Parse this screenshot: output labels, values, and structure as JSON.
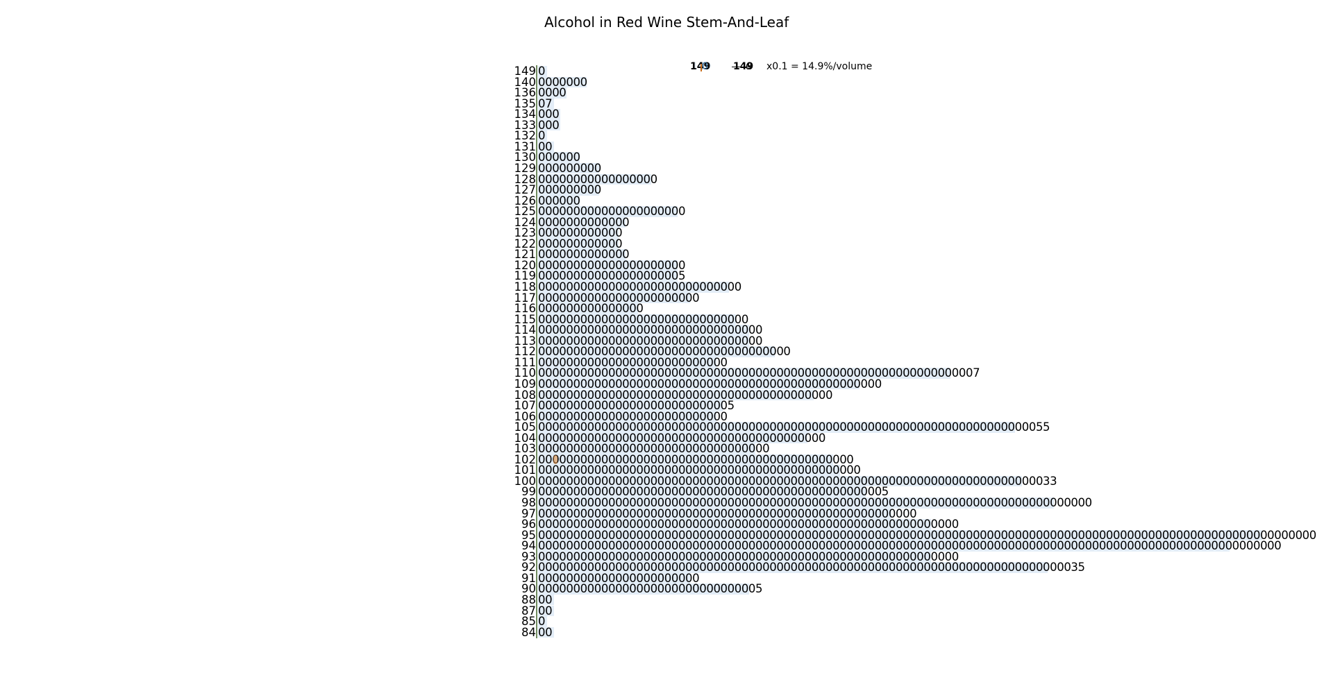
{
  "chart_data": {
    "type": "stem-and-leaf",
    "title": "Alcohol in Red Wine Stem-And-Leaf",
    "key": {
      "stem": "149",
      "leaf": "0",
      "stem_example": "149",
      "leaf_example": "0",
      "text": "x0.1 = 14.9%/volume"
    },
    "rows": [
      {
        "stem": "149",
        "leaves": "0"
      },
      {
        "stem": "140",
        "leaves": "0000000"
      },
      {
        "stem": "136",
        "leaves": "0000"
      },
      {
        "stem": "135",
        "leaves": "07"
      },
      {
        "stem": "134",
        "leaves": "000"
      },
      {
        "stem": "133",
        "leaves": "000"
      },
      {
        "stem": "132",
        "leaves": "0"
      },
      {
        "stem": "131",
        "leaves": "00"
      },
      {
        "stem": "130",
        "leaves": "000000"
      },
      {
        "stem": "129",
        "leaves": "000000000"
      },
      {
        "stem": "128",
        "leaves": "00000000000000000"
      },
      {
        "stem": "127",
        "leaves": "000000000"
      },
      {
        "stem": "126",
        "leaves": "000000"
      },
      {
        "stem": "125",
        "leaves": "000000000000000000000"
      },
      {
        "stem": "124",
        "leaves": "0000000000000"
      },
      {
        "stem": "123",
        "leaves": "000000000000"
      },
      {
        "stem": "122",
        "leaves": "000000000000"
      },
      {
        "stem": "121",
        "leaves": "0000000000000"
      },
      {
        "stem": "120",
        "leaves": "000000000000000000000"
      },
      {
        "stem": "119",
        "leaves": "000000000000000000005"
      },
      {
        "stem": "118",
        "leaves": "00000000000000000000000000000"
      },
      {
        "stem": "117",
        "leaves": "00000000000000000000000"
      },
      {
        "stem": "116",
        "leaves": "000000000000000"
      },
      {
        "stem": "115",
        "leaves": "000000000000000000000000000000"
      },
      {
        "stem": "114",
        "leaves": "00000000000000000000000000000000"
      },
      {
        "stem": "113",
        "leaves": "00000000000000000000000000000000"
      },
      {
        "stem": "112",
        "leaves": "000000000000000000000000000000000000"
      },
      {
        "stem": "111",
        "leaves": "000000000000000000000000000"
      },
      {
        "stem": "110",
        "leaves": "000000000000000000000000000000000000000000000000000000000000007"
      },
      {
        "stem": "109",
        "leaves": "0000000000000000000000000000000000000000000000000"
      },
      {
        "stem": "108",
        "leaves": "000000000000000000000000000000000000000000"
      },
      {
        "stem": "107",
        "leaves": "0000000000000000000000000005"
      },
      {
        "stem": "106",
        "leaves": "000000000000000000000000000"
      },
      {
        "stem": "105",
        "leaves": "0000000000000000000000000000000000000000000000000000000000000000000000055"
      },
      {
        "stem": "104",
        "leaves": "00000000000000000000000000000000000000000"
      },
      {
        "stem": "103",
        "leaves": "000000000000000000000000000000000"
      },
      {
        "stem": "102",
        "leaves": "000000000000000000000000000000000000000000000"
      },
      {
        "stem": "101",
        "leaves": "0000000000000000000000000000000000000000000000"
      },
      {
        "stem": "100",
        "leaves": "00000000000000000000000000000000000000000000000000000000000000000000000033"
      },
      {
        "stem": "99",
        "leaves": "00000000000000000000000000000000000000000000000005"
      },
      {
        "stem": "98",
        "leaves": "0000000000000000000000000000000000000000000000000000000000000000000000000000000"
      },
      {
        "stem": "97",
        "leaves": "000000000000000000000000000000000000000000000000000000"
      },
      {
        "stem": "96",
        "leaves": "000000000000000000000000000000000000000000000000000000000000"
      },
      {
        "stem": "95",
        "leaves": "000000000000000000000000000000000000000000000000000000000000000000000000000000000000000000000000000000000000000"
      },
      {
        "stem": "94",
        "leaves": "0000000000000000000000000000000000000000000000000000000000000000000000000000000000000000000000000000000000"
      },
      {
        "stem": "93",
        "leaves": "000000000000000000000000000000000000000000000000000000000000"
      },
      {
        "stem": "92",
        "leaves": "000000000000000000000000000000000000000000000000000000000000000000000000000035"
      },
      {
        "stem": "91",
        "leaves": "00000000000000000000000"
      },
      {
        "stem": "90",
        "leaves": "00000000000000000000000000000005"
      },
      {
        "stem": "88",
        "leaves": "00"
      },
      {
        "stem": "87",
        "leaves": "00"
      },
      {
        "stem": "85",
        "leaves": "0"
      },
      {
        "stem": "84",
        "leaves": "00"
      }
    ]
  }
}
